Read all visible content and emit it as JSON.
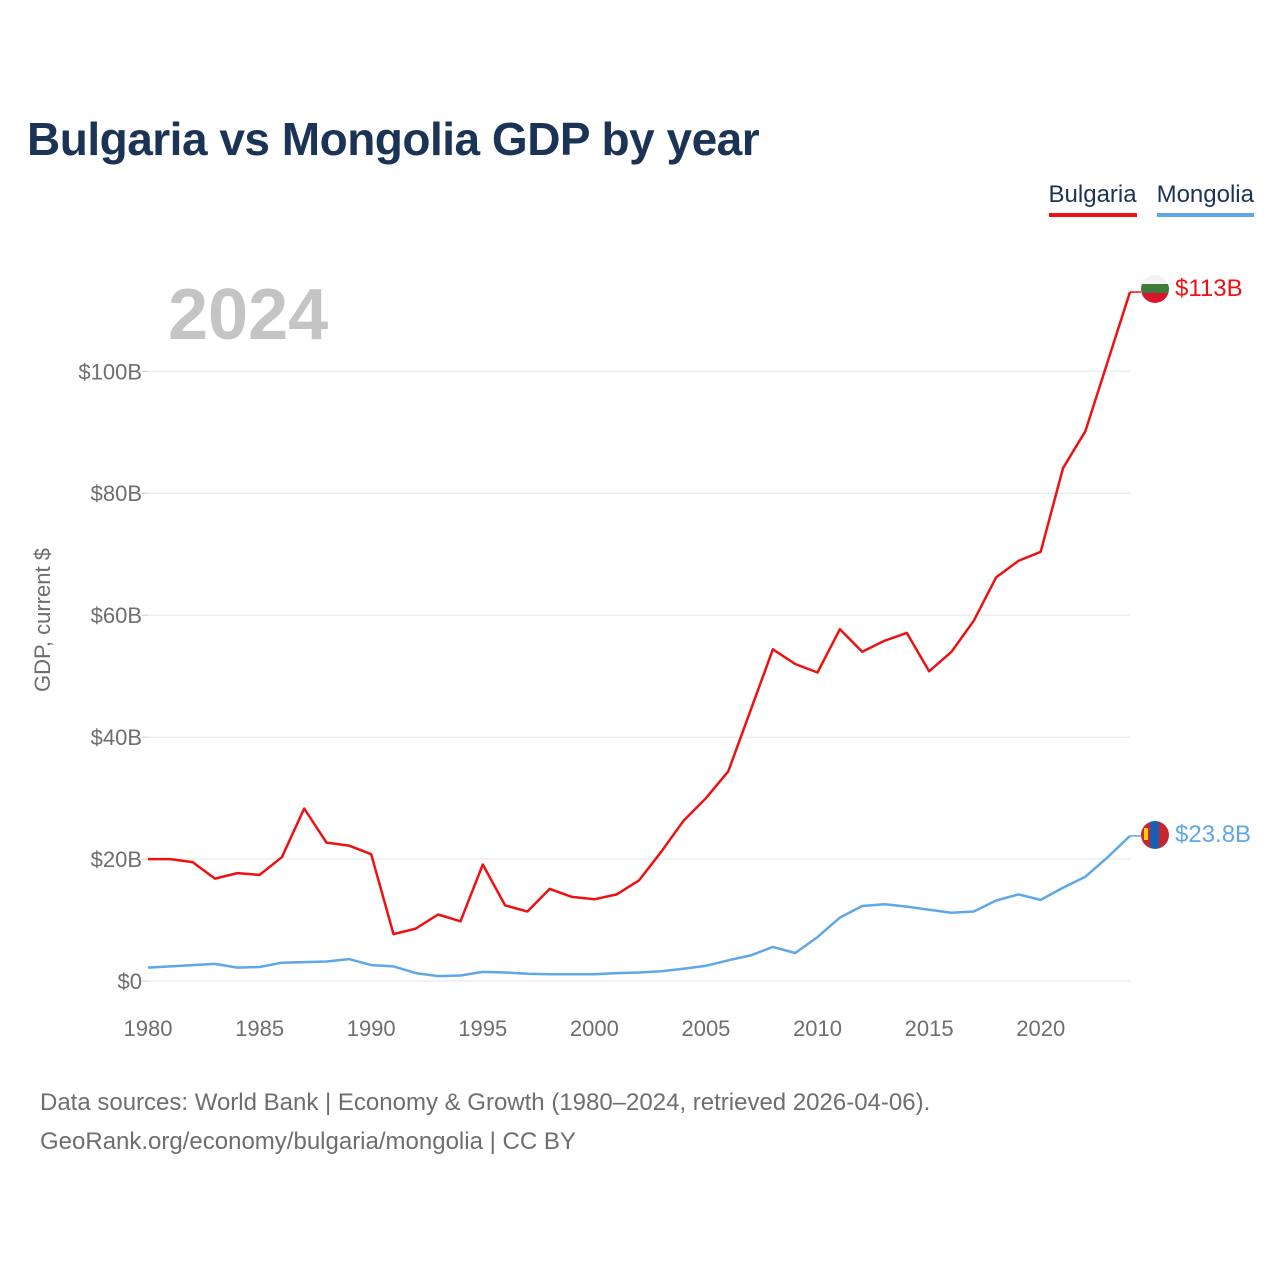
{
  "title": "Bulgaria vs Mongolia GDP by year",
  "legend": [
    {
      "name": "Bulgaria",
      "color": "#ee1111"
    },
    {
      "name": "Mongolia",
      "color": "#5fa7e6"
    }
  ],
  "year_watermark": "2024",
  "end_labels": {
    "bulgaria": "$113B",
    "mongolia": "$23.8B"
  },
  "footer": {
    "line1": "Data sources: World Bank | Economy & Growth (1980–2024, retrieved 2026-04-06).",
    "line2": "GeoRank.org/economy/bulgaria/mongolia | CC BY"
  },
  "chart_data": {
    "type": "line",
    "title": "Bulgaria vs Mongolia GDP by year",
    "ylabel": "GDP, current $",
    "xlabel": "",
    "xlim": [
      1980,
      2024
    ],
    "ylim": [
      0,
      113.5
    ],
    "yticks": [
      0,
      20,
      40,
      60,
      80,
      100
    ],
    "ytick_labels": [
      "$0",
      "$20B",
      "$40B",
      "$60B",
      "$80B",
      "$100B"
    ],
    "xticks": [
      1980,
      1985,
      1990,
      1995,
      2000,
      2005,
      2010,
      2015,
      2020
    ],
    "xtick_labels": [
      "1980",
      "1985",
      "1990",
      "1995",
      "2000",
      "2005",
      "2010",
      "2015",
      "2020"
    ],
    "x": [
      1980,
      1981,
      1982,
      1983,
      1984,
      1985,
      1986,
      1987,
      1988,
      1989,
      1990,
      1991,
      1992,
      1993,
      1994,
      1995,
      1996,
      1997,
      1998,
      1999,
      2000,
      2001,
      2002,
      2003,
      2004,
      2005,
      2006,
      2007,
      2008,
      2009,
      2010,
      2011,
      2012,
      2013,
      2014,
      2015,
      2016,
      2017,
      2018,
      2019,
      2020,
      2021,
      2022,
      2023,
      2024
    ],
    "series": [
      {
        "name": "Bulgaria",
        "color": "#ee1111",
        "values": [
          20.0,
          20.0,
          19.5,
          16.8,
          17.7,
          17.4,
          20.3,
          28.3,
          22.7,
          22.2,
          20.8,
          7.7,
          8.6,
          10.9,
          9.8,
          19.1,
          12.4,
          11.4,
          15.1,
          13.8,
          13.4,
          14.2,
          16.5,
          21.2,
          26.3,
          30.0,
          34.4,
          44.4,
          54.4,
          52.0,
          50.6,
          57.7,
          54.0,
          55.8,
          57.1,
          50.8,
          54.0,
          59.1,
          66.2,
          68.9,
          70.4,
          84.1,
          90.2,
          101.6,
          113.0
        ]
      },
      {
        "name": "Mongolia",
        "color": "#5fa7e6",
        "values": [
          2.2,
          2.4,
          2.6,
          2.8,
          2.2,
          2.3,
          3.0,
          3.1,
          3.2,
          3.6,
          2.6,
          2.4,
          1.3,
          0.8,
          0.9,
          1.5,
          1.4,
          1.2,
          1.1,
          1.1,
          1.1,
          1.3,
          1.4,
          1.6,
          2.0,
          2.5,
          3.4,
          4.2,
          5.6,
          4.6,
          7.2,
          10.4,
          12.3,
          12.6,
          12.2,
          11.7,
          11.2,
          11.4,
          13.2,
          14.2,
          13.3,
          15.3,
          17.1,
          20.3,
          23.8
        ]
      }
    ]
  }
}
